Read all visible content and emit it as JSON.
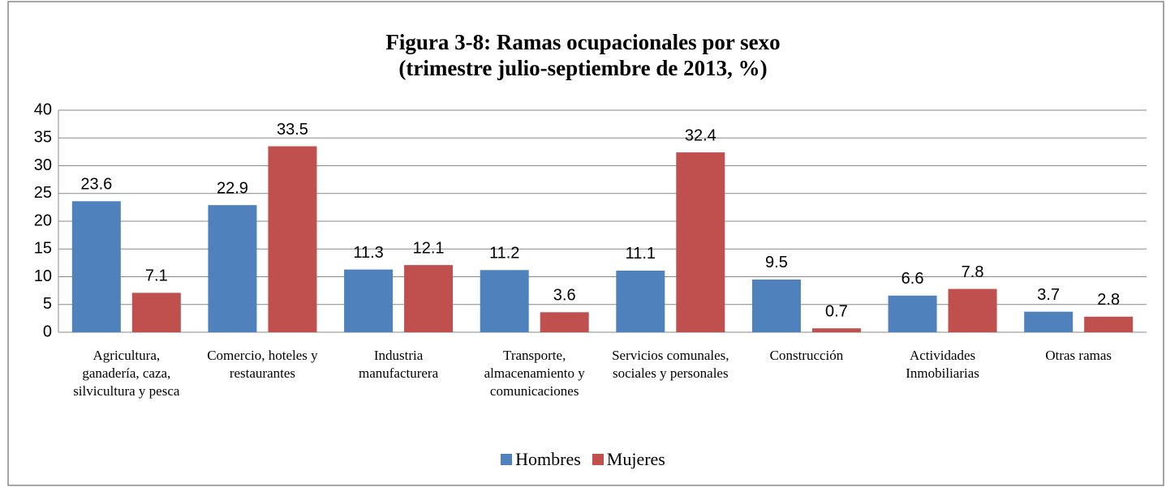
{
  "chart_data": {
    "type": "bar",
    "title": "Figura 3-8: Ramas ocupacionales por sexo\n(trimestre julio-septiembre de 2013, %)",
    "categories": [
      "Agricultura, ganadería, caza, silvicultura y pesca",
      "Comercio, hoteles y restaurantes",
      "Industria manufacturera",
      "Transporte, almacenamiento y comunicaciones",
      "Servicios comunales, sociales y personales",
      "Construcción",
      "Actividades Inmobiliarias",
      "Otras ramas"
    ],
    "series": [
      {
        "name": "Hombres",
        "color": "#4f81bd",
        "values": [
          23.6,
          22.9,
          11.3,
          11.2,
          11.1,
          9.5,
          6.6,
          3.7
        ]
      },
      {
        "name": "Mujeres",
        "color": "#c0504d",
        "values": [
          7.1,
          33.5,
          12.1,
          3.6,
          32.4,
          0.7,
          7.8,
          2.8
        ]
      }
    ],
    "ylim": [
      0,
      40
    ],
    "yticks": [
      0,
      5,
      10,
      15,
      20,
      25,
      30,
      35,
      40
    ],
    "grid": true,
    "legend": "bottom"
  }
}
